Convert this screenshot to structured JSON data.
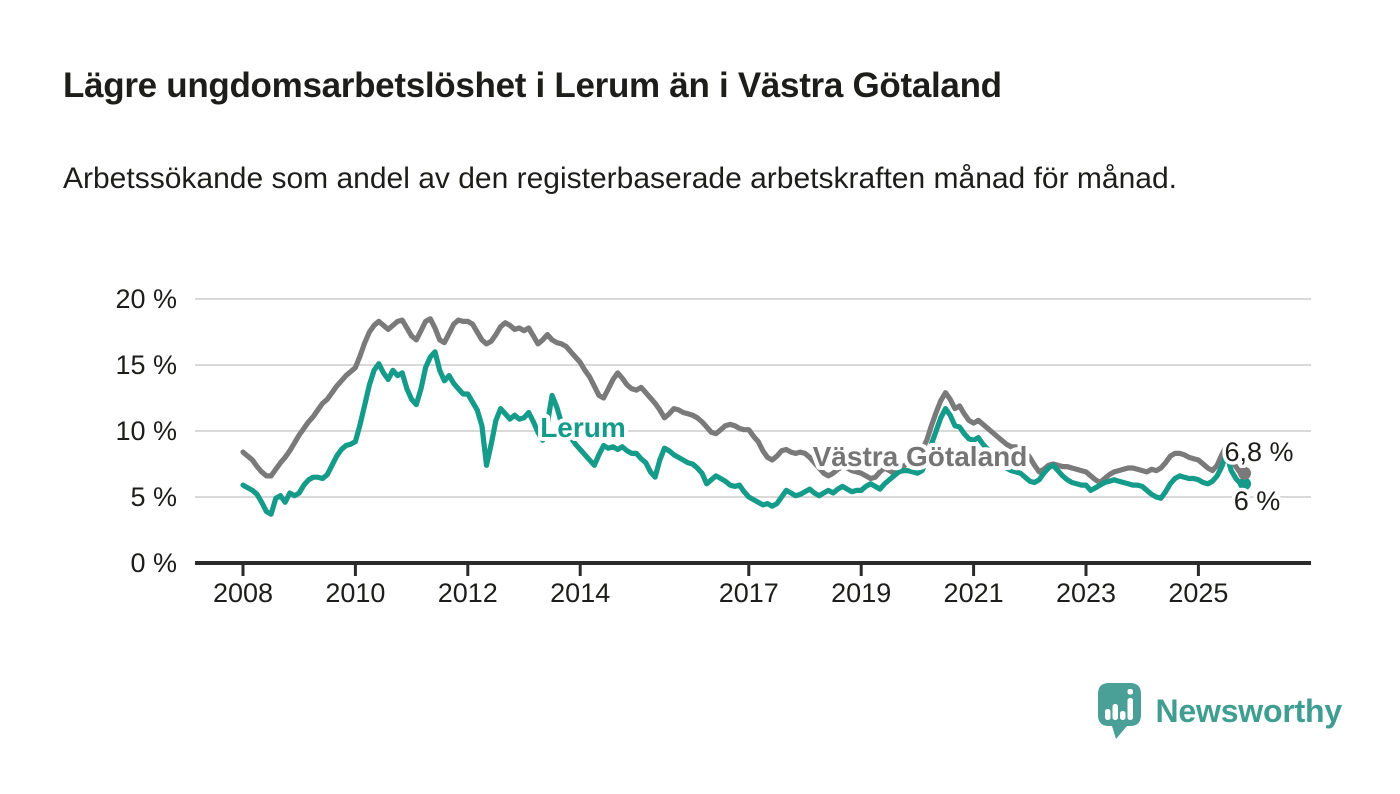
{
  "header": {
    "title": "Lägre ungdomsarbetslöshet i Lerum än i Västra Götaland",
    "subtitle": "Arbetssökande som andel av den registerbaserade arbetskraften månad för månad."
  },
  "footer": {
    "brand": "Newsworthy"
  },
  "colors": {
    "lerum": "#149b8a",
    "vastra_gotaland": "#7a7a7a",
    "axis": "#2b2b2b",
    "gridline": "#d9d9d9",
    "text": "#1d1d1b",
    "brand_teal": "#3f9d91"
  },
  "chart_data": {
    "type": "line",
    "title": "Lägre ungdomsarbetslöshet i Lerum än i Västra Götaland",
    "subtitle": "Arbetssökande som andel av den registerbaserade arbetskraften månad för månad.",
    "unit": "%",
    "x_start": "2008-01",
    "x_end": "2025-10",
    "x_frequency": "monthly",
    "xlim_years": [
      2008,
      2025.83
    ],
    "ylim": [
      0,
      20
    ],
    "grid": "horizontal",
    "legend_position": "inline-labels",
    "x_ticks": [
      2008,
      2010,
      2012,
      2014,
      2017,
      2019,
      2021,
      2023,
      2025
    ],
    "y_ticks": [
      {
        "value": 0,
        "label": "0 %"
      },
      {
        "value": 5,
        "label": "5 %"
      },
      {
        "value": 10,
        "label": "10 %"
      },
      {
        "value": 15,
        "label": "15 %"
      },
      {
        "value": 20,
        "label": "20 %"
      }
    ],
    "series": [
      {
        "name": "Västra Götaland",
        "color": "#7a7a7a",
        "end_label": "6,8 %",
        "end_value": 6.8,
        "values": [
          8.4,
          8.1,
          7.8,
          7.3,
          6.9,
          6.6,
          6.6,
          7.1,
          7.6,
          8.0,
          8.5,
          9.1,
          9.7,
          10.2,
          10.7,
          11.1,
          11.6,
          12.1,
          12.4,
          12.9,
          13.4,
          13.8,
          14.2,
          14.5,
          14.8,
          15.7,
          16.7,
          17.5,
          18.0,
          18.3,
          18.0,
          17.7,
          18.0,
          18.3,
          18.4,
          17.8,
          17.2,
          16.9,
          17.6,
          18.3,
          18.5,
          17.8,
          16.9,
          16.7,
          17.4,
          18.1,
          18.4,
          18.3,
          18.3,
          18.1,
          17.5,
          16.9,
          16.6,
          16.8,
          17.3,
          17.9,
          18.2,
          18.0,
          17.7,
          17.8,
          17.6,
          17.8,
          17.2,
          16.6,
          16.9,
          17.3,
          16.9,
          16.7,
          16.6,
          16.4,
          16.0,
          15.6,
          15.2,
          14.6,
          14.1,
          13.4,
          12.7,
          12.5,
          13.2,
          13.9,
          14.4,
          14.0,
          13.5,
          13.2,
          13.1,
          13.3,
          12.9,
          12.5,
          12.1,
          11.6,
          11.0,
          11.3,
          11.7,
          11.6,
          11.4,
          11.3,
          11.2,
          11.0,
          10.7,
          10.3,
          9.9,
          9.8,
          10.1,
          10.4,
          10.5,
          10.4,
          10.2,
          10.1,
          10.1,
          9.6,
          9.2,
          8.5,
          8.0,
          7.8,
          8.1,
          8.5,
          8.6,
          8.4,
          8.3,
          8.4,
          8.3,
          8.0,
          7.6,
          7.2,
          6.8,
          6.6,
          6.8,
          7.1,
          7.3,
          7.2,
          7.0,
          6.9,
          6.8,
          6.6,
          6.4,
          6.5,
          6.9,
          7.2,
          7.0,
          6.8,
          7.0,
          7.3,
          7.6,
          7.9,
          8.3,
          8.6,
          9.3,
          10.4,
          11.4,
          12.3,
          12.9,
          12.4,
          11.7,
          11.9,
          11.3,
          10.8,
          10.6,
          10.8,
          10.5,
          10.2,
          9.9,
          9.6,
          9.3,
          9.0,
          8.8,
          8.8,
          8.7,
          8.4,
          8.0,
          7.4,
          6.9,
          7.1,
          7.4,
          7.5,
          7.4,
          7.3,
          7.3,
          7.2,
          7.1,
          7.0,
          6.9,
          6.6,
          6.3,
          6.1,
          6.4,
          6.7,
          6.9,
          7.0,
          7.1,
          7.2,
          7.2,
          7.1,
          7.0,
          6.9,
          7.1,
          7.0,
          7.2,
          7.6,
          8.1,
          8.3,
          8.3,
          8.2,
          8.0,
          7.9,
          7.8,
          7.5,
          7.2,
          7.0,
          7.4,
          8.2,
          8.9,
          7.9,
          7.3,
          6.8
        ]
      },
      {
        "name": "Lerum",
        "color": "#149b8a",
        "end_label": "6 %",
        "end_value": 6.0,
        "values": [
          5.9,
          5.7,
          5.5,
          5.2,
          4.6,
          3.9,
          3.7,
          4.9,
          5.1,
          4.6,
          5.3,
          5.1,
          5.3,
          5.9,
          6.3,
          6.5,
          6.5,
          6.4,
          6.7,
          7.4,
          8.1,
          8.6,
          8.9,
          9.0,
          9.2,
          10.5,
          12.0,
          13.5,
          14.6,
          15.1,
          14.4,
          13.9,
          14.6,
          14.2,
          14.4,
          13.2,
          12.4,
          12.0,
          13.2,
          14.8,
          15.6,
          16.0,
          14.6,
          13.8,
          14.2,
          13.6,
          13.2,
          12.8,
          12.8,
          12.2,
          11.6,
          10.4,
          7.4,
          9.0,
          10.8,
          11.7,
          11.3,
          10.9,
          11.2,
          10.9,
          11.0,
          11.4,
          10.7,
          9.9,
          9.3,
          10.6,
          12.7,
          11.8,
          10.6,
          9.9,
          9.5,
          9.0,
          8.6,
          8.2,
          7.8,
          7.4,
          8.2,
          8.9,
          8.7,
          8.8,
          8.6,
          8.8,
          8.5,
          8.3,
          8.3,
          7.9,
          7.6,
          6.9,
          6.5,
          7.8,
          8.7,
          8.5,
          8.2,
          8.0,
          7.8,
          7.6,
          7.5,
          7.2,
          6.8,
          6.0,
          6.3,
          6.6,
          6.4,
          6.2,
          5.9,
          5.8,
          5.9,
          5.4,
          5.0,
          4.8,
          4.6,
          4.4,
          4.5,
          4.3,
          4.5,
          5.0,
          5.5,
          5.3,
          5.1,
          5.2,
          5.4,
          5.6,
          5.3,
          5.1,
          5.3,
          5.5,
          5.3,
          5.6,
          5.8,
          5.6,
          5.4,
          5.5,
          5.5,
          5.8,
          6.0,
          5.8,
          5.6,
          6.0,
          6.3,
          6.6,
          6.9,
          7.0,
          7.0,
          6.9,
          6.8,
          7.0,
          7.8,
          9.0,
          10.0,
          11.0,
          11.7,
          11.2,
          10.4,
          10.3,
          9.8,
          9.4,
          9.3,
          9.5,
          9.0,
          8.6,
          8.2,
          7.8,
          7.4,
          7.2,
          7.0,
          6.9,
          6.8,
          6.5,
          6.2,
          6.1,
          6.3,
          6.8,
          7.2,
          7.4,
          7.0,
          6.6,
          6.3,
          6.1,
          6.0,
          5.9,
          5.9,
          5.5,
          5.7,
          5.9,
          6.1,
          6.2,
          6.3,
          6.2,
          6.1,
          6.0,
          5.9,
          5.9,
          5.8,
          5.5,
          5.2,
          5.0,
          4.9,
          5.4,
          6.0,
          6.4,
          6.6,
          6.5,
          6.4,
          6.4,
          6.3,
          6.1,
          6.0,
          6.2,
          6.6,
          7.3,
          8.3,
          7.0,
          6.4,
          6.0
        ]
      }
    ]
  }
}
